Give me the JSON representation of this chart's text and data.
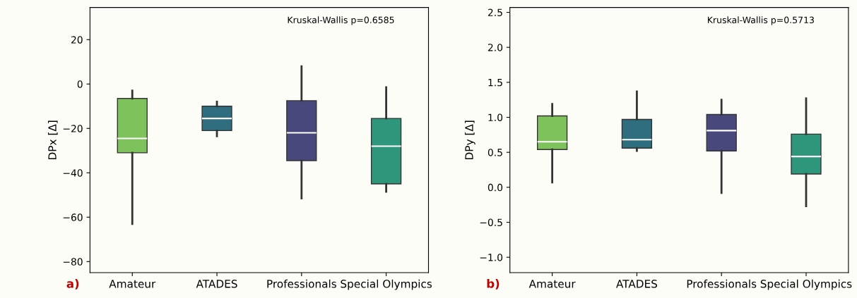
{
  "chart_data": [
    {
      "type": "box",
      "ylabel": "DPx [Δ]",
      "categories": [
        "Amateur",
        "ATADES",
        "Professionals",
        "Special Olympics"
      ],
      "colors": [
        "#7dc25a",
        "#2e6e7e",
        "#48487c",
        "#2e977b"
      ],
      "boxes": [
        {
          "low": -63,
          "q1": -31,
          "median": -24.5,
          "q3": -6.5,
          "high": -3
        },
        {
          "low": -23.5,
          "q1": -21,
          "median": -15.5,
          "q3": -10,
          "high": -8
        },
        {
          "low": -51.5,
          "q1": -34.5,
          "median": -22,
          "q3": -7.5,
          "high": 8
        },
        {
          "low": -48.5,
          "q1": -45,
          "median": -28,
          "q3": -15.5,
          "high": -1.5
        }
      ],
      "ylim": [
        -85,
        34.5
      ],
      "yticks": [
        {
          "value": -80,
          "label": "−80"
        },
        {
          "value": -60,
          "label": "−60"
        },
        {
          "value": -40,
          "label": "−40"
        },
        {
          "value": -20,
          "label": "−20"
        },
        0,
        20
      ],
      "grid": false,
      "annotations": [
        "Kruskal-Wallis p=0.6585",
        "a)"
      ]
    },
    {
      "type": "box",
      "ylabel": "DPy [Δ]",
      "categories": [
        "Amateur",
        "ATADES",
        "Professionals",
        "Special Olympics"
      ],
      "colors": [
        "#7dc25a",
        "#2e6e7e",
        "#48487c",
        "#2e977b"
      ],
      "boxes": [
        {
          "low": 0.07,
          "q1": 0.54,
          "median": 0.65,
          "q3": 1.02,
          "high": 1.19
        },
        {
          "low": 0.52,
          "q1": 0.56,
          "median": 0.68,
          "q3": 0.97,
          "high": 1.37
        },
        {
          "low": -0.08,
          "q1": 0.52,
          "median": 0.81,
          "q3": 1.04,
          "high": 1.25
        },
        {
          "low": -0.27,
          "q1": 0.19,
          "median": 0.44,
          "q3": 0.76,
          "high": 1.27
        }
      ],
      "ylim": [
        -1.22,
        2.57
      ],
      "yticks": [
        {
          "value": -1.0,
          "label": "−1.0"
        },
        {
          "value": -0.5,
          "label": "−0.5"
        },
        {
          "value": 0.0,
          "label": "0.0"
        },
        {
          "value": 0.5,
          "label": "0.5"
        },
        {
          "value": 1.0,
          "label": "1.0"
        },
        {
          "value": 1.5,
          "label": "1.5"
        },
        {
          "value": 2.0,
          "label": "2.0"
        },
        {
          "value": 2.5,
          "label": "2.5"
        }
      ],
      "grid": false,
      "annotations": [
        "Kruskal-Wallis p=0.5713",
        "b)"
      ]
    }
  ]
}
